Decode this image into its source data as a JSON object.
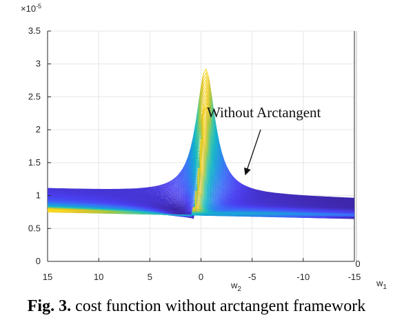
{
  "chart_data": {
    "type": "surface",
    "exponent_label": "×10",
    "exponent_power": "-5",
    "y_ticks": [
      "0",
      "0.5",
      "1",
      "1.5",
      "2",
      "2.5",
      "3",
      "3.5"
    ],
    "y_values": [
      0,
      0.5,
      1,
      1.5,
      2,
      2.5,
      3,
      3.5
    ],
    "ylim": [
      0,
      3.5
    ],
    "w2_ticks": [
      "15",
      "10",
      "5",
      "0",
      "-5",
      "-10",
      "-15"
    ],
    "w2_values": [
      15,
      10,
      5,
      0,
      -5,
      -10,
      -15
    ],
    "w1_tick_partial": "0",
    "xlabel_main": "w",
    "xlabel_main_sub": "2",
    "xlabel_depth": "w",
    "xlabel_depth_sub": "1",
    "peak": {
      "w2": 0.5,
      "value": 3.0
    },
    "trough": {
      "w2": -1,
      "value": 0.3
    },
    "baseline_front": {
      "w2_15": 1.1,
      "w2_neg15": 0.95
    },
    "baseline_back": {
      "w2_15": 0.75,
      "w2_neg15": 0.65
    },
    "colormap": "parula",
    "grid": true,
    "annotation": "Without Arctangent"
  },
  "caption": {
    "label": "Fig. 3.",
    "text": " cost function without arctangent framework"
  }
}
